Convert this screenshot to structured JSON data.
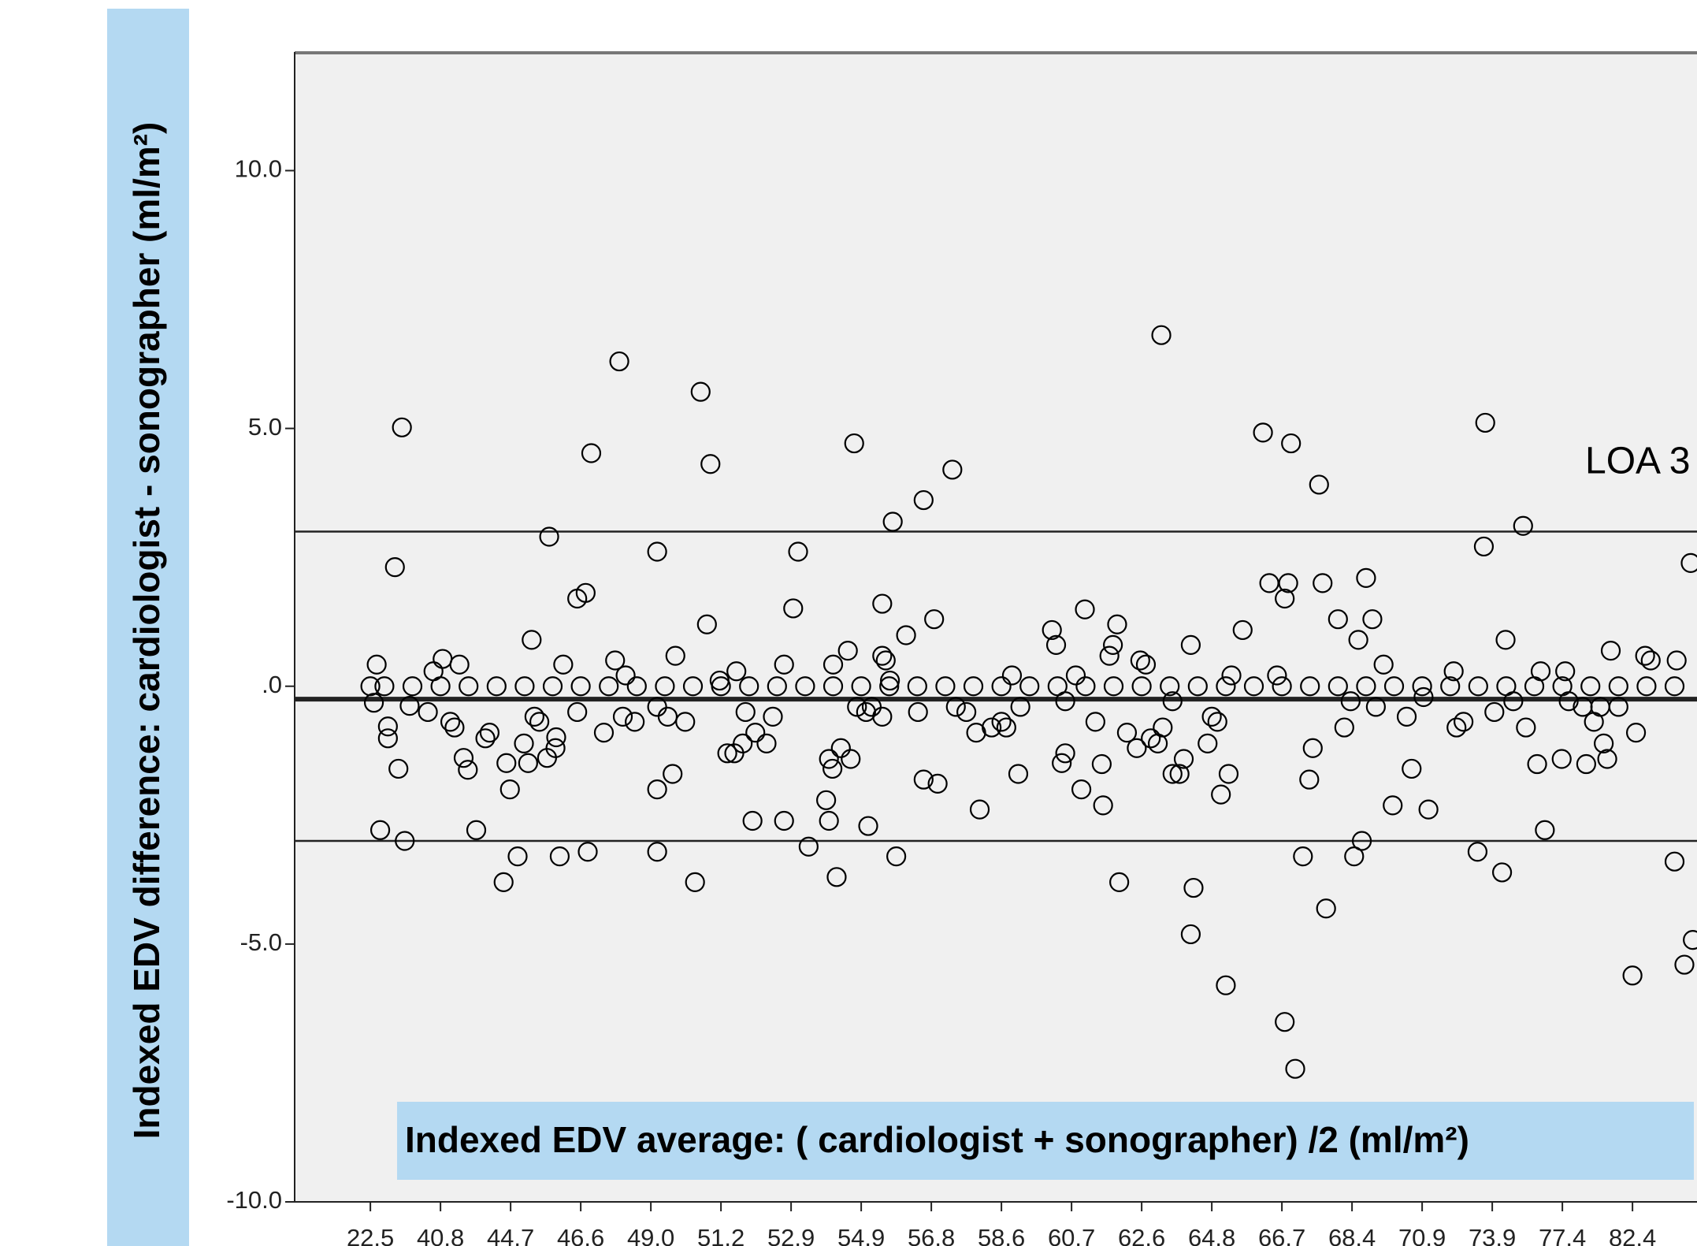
{
  "chart_data": {
    "type": "scatter",
    "y_label": "Indexed EDV difference:  cardiologist  - sonographer (ml/m²)",
    "x_label": "Indexed EDV average: ( cardiologist  + sonographer) /2  (ml/m²)",
    "annotation": "LOA 3",
    "color": "#000000",
    "hlines": [
      3.0,
      -0.25,
      -3.0
    ],
    "xlim": [
      -0.08,
      19.92
    ],
    "ylim": [
      -10,
      12.3
    ],
    "xticks": [
      {
        "value": 1,
        "label": "22.5"
      },
      {
        "value": 2,
        "label": "40.8"
      },
      {
        "value": 3,
        "label": "44.7"
      },
      {
        "value": 4,
        "label": "46.6"
      },
      {
        "value": 5,
        "label": "49.0"
      },
      {
        "value": 6,
        "label": "51.2"
      },
      {
        "value": 7,
        "label": "52.9"
      },
      {
        "value": 8,
        "label": "54.9"
      },
      {
        "value": 9,
        "label": "56.8"
      },
      {
        "value": 10,
        "label": "58.6"
      },
      {
        "value": 11,
        "label": "60.7"
      },
      {
        "value": 12,
        "label": "62.6"
      },
      {
        "value": 13,
        "label": "64.8"
      },
      {
        "value": 14,
        "label": "66.7"
      },
      {
        "value": 15,
        "label": "68.4"
      },
      {
        "value": 16,
        "label": "70.9"
      },
      {
        "value": 17,
        "label": "73.9"
      },
      {
        "value": 18,
        "label": "77.4"
      },
      {
        "value": 19,
        "label": "82.4"
      }
    ],
    "yticks": [
      {
        "value": 10,
        "label": "10.0"
      },
      {
        "value": 5,
        "label": "5.0"
      },
      {
        "value": 0,
        "label": ".0"
      },
      {
        "value": -5,
        "label": "-5.0"
      },
      {
        "value": -10,
        "label": "-10.0"
      }
    ],
    "x": [
      1.0,
      1.09,
      1.05,
      1.25,
      1.25,
      1.35,
      1.4,
      1.14,
      1.45,
      1.49,
      1.56,
      1.82,
      1.9,
      2.03,
      2.14,
      2.2,
      2.27,
      2.33,
      2.39,
      2.51,
      2.64,
      2.7,
      2.9,
      2.94,
      2.99,
      3.1,
      3.19,
      3.25,
      3.3,
      3.34,
      3.41,
      3.55,
      3.52,
      3.64,
      3.65,
      3.7,
      3.75,
      3.95,
      3.95,
      4.07,
      4.1,
      4.15,
      4.33,
      4.49,
      4.55,
      4.6,
      4.64,
      4.77,
      5.09,
      5.09,
      5.09,
      5.09,
      5.24,
      5.31,
      5.35,
      5.49,
      5.63,
      5.71,
      5.8,
      5.85,
      5.98,
      6.09,
      6.19,
      6.22,
      6.31,
      6.35,
      6.45,
      6.49,
      6.65,
      6.74,
      6.9,
      6.9,
      7.03,
      7.1,
      7.25,
      7.5,
      7.54,
      7.54,
      7.59,
      7.6,
      7.65,
      7.71,
      7.81,
      7.85,
      7.9,
      7.94,
      8.07,
      8.1,
      8.15,
      8.3,
      8.3,
      8.35,
      8.3,
      8.41,
      8.45,
      8.5,
      8.64,
      8.81,
      8.89,
      8.89,
      9.04,
      9.09,
      9.3,
      9.35,
      9.5,
      9.64,
      9.69,
      9.86,
      10.0,
      10.07,
      10.15,
      10.24,
      10.27,
      10.72,
      10.78,
      10.86,
      10.91,
      10.91,
      11.06,
      11.14,
      11.19,
      11.34,
      11.43,
      11.45,
      11.54,
      11.59,
      11.65,
      11.68,
      11.79,
      11.93,
      11.98,
      12.06,
      12.13,
      12.23,
      12.28,
      12.3,
      12.44,
      12.44,
      12.54,
      12.6,
      12.7,
      12.7,
      12.74,
      12.94,
      13.0,
      13.08,
      13.13,
      13.2,
      13.24,
      13.28,
      13.44,
      13.73,
      13.82,
      13.93,
      14.04,
      14.04,
      14.09,
      14.13,
      14.19,
      14.3,
      14.39,
      14.44,
      14.53,
      14.58,
      14.63,
      14.8,
      14.89,
      14.98,
      15.03,
      15.09,
      15.14,
      15.2,
      15.29,
      15.34,
      15.45,
      15.58,
      15.78,
      15.85,
      16.02,
      16.09,
      16.45,
      16.49,
      16.59,
      16.79,
      16.88,
      16.9,
      17.03,
      17.14,
      17.19,
      17.3,
      17.44,
      17.48,
      17.64,
      17.69,
      17.75,
      17.99,
      18.04,
      18.09,
      18.34,
      18.29,
      18.45,
      18.54,
      18.59,
      18.64,
      18.69,
      18.8,
      19.0,
      19.05,
      19.18,
      19.26,
      19.6,
      19.63,
      19.74,
      19.83,
      19.86,
      1.2,
      1.6,
      2.0,
      2.4,
      2.8,
      3.2,
      3.6,
      4.0,
      4.4,
      4.8,
      5.2,
      5.6,
      6.0,
      6.4,
      6.8,
      7.2,
      7.6,
      8.0,
      8.4,
      8.8,
      9.2,
      9.6,
      10.0,
      10.4,
      10.8,
      11.2,
      11.6,
      12.0,
      12.4,
      12.8,
      13.2,
      13.6,
      14.0,
      14.4,
      14.8,
      15.2,
      15.6,
      16.0,
      16.4,
      16.8,
      17.2,
      17.6,
      18.0,
      18.4,
      18.8,
      19.2,
      19.6
    ],
    "values": [
      0,
      0.42,
      -0.32,
      -0.78,
      -1.01,
      2.31,
      -1.6,
      -2.79,
      5.02,
      -3.0,
      -0.38,
      -0.5,
      0.29,
      0.53,
      -0.69,
      -0.8,
      0.42,
      -1.39,
      -1.62,
      -2.79,
      -1.01,
      -0.9,
      -3.8,
      -1.49,
      -2.0,
      -3.3,
      -1.11,
      -1.49,
      0.9,
      -0.59,
      -0.69,
      2.9,
      -1.39,
      -1.2,
      -0.99,
      -3.3,
      0.42,
      -0.5,
      1.7,
      1.81,
      -3.21,
      4.52,
      -0.9,
      0.5,
      6.3,
      -0.59,
      0.21,
      -0.69,
      2.61,
      -3.21,
      -2.0,
      -0.4,
      -0.59,
      -1.7,
      0.59,
      -0.69,
      -3.8,
      5.71,
      1.2,
      4.31,
      0.11,
      -1.3,
      -1.3,
      0.29,
      -1.11,
      -0.5,
      -2.61,
      -0.9,
      -1.11,
      -0.59,
      -2.61,
      0.42,
      1.51,
      2.61,
      -3.11,
      -2.21,
      -2.61,
      -1.41,
      -1.6,
      0.42,
      -3.7,
      -1.2,
      0.69,
      -1.41,
      4.71,
      -0.4,
      -0.5,
      -2.71,
      -0.4,
      1.6,
      0.59,
      0.5,
      -0.59,
      0.11,
      3.19,
      -3.3,
      0.99,
      -0.5,
      3.61,
      -1.81,
      1.3,
      -1.89,
      4.2,
      -0.4,
      -0.5,
      -0.9,
      -2.39,
      -0.8,
      -0.69,
      -0.8,
      0.21,
      -1.7,
      -0.4,
      1.09,
      0.8,
      -1.49,
      -1.3,
      -0.29,
      0.21,
      -2.0,
      1.49,
      -0.69,
      -1.51,
      -2.31,
      0.59,
      0.8,
      1.2,
      -3.8,
      -0.9,
      -1.2,
      0.5,
      0.42,
      -1.01,
      -1.11,
      6.81,
      -0.8,
      -0.29,
      -1.7,
      -1.7,
      -1.41,
      0.8,
      -4.81,
      -3.91,
      -1.11,
      -0.59,
      -0.69,
      -2.1,
      -5.8,
      -1.7,
      0.21,
      1.09,
      4.92,
      2.0,
      0.21,
      1.7,
      -6.51,
      2.0,
      4.71,
      -7.42,
      -3.3,
      -1.81,
      -1.2,
      3.91,
      2.0,
      -4.31,
      1.3,
      -0.8,
      -0.29,
      -3.3,
      0.9,
      -3.0,
      2.1,
      1.3,
      -0.4,
      0.42,
      -2.31,
      -0.59,
      -1.6,
      -0.21,
      -2.39,
      0.29,
      -0.8,
      -0.69,
      -3.21,
      2.71,
      5.11,
      -0.5,
      -3.61,
      0.9,
      -0.29,
      3.11,
      -0.8,
      -1.51,
      0.29,
      -2.79,
      -1.41,
      0.29,
      -0.29,
      -1.51,
      -0.4,
      -0.69,
      -0.4,
      -1.11,
      -1.41,
      0.69,
      -0.4,
      -5.61,
      -0.9,
      0.59,
      0.5,
      -3.4,
      0.5,
      -5.4,
      2.39,
      -4.92,
      0,
      0,
      0,
      0,
      0,
      0,
      0,
      0,
      0,
      0,
      0,
      0,
      0,
      0,
      0,
      0,
      0,
      0,
      0,
      0,
      0,
      0,
      0,
      0,
      0,
      0,
      0,
      0,
      0,
      0,
      0,
      0,
      0,
      0,
      0,
      0,
      0,
      0,
      0,
      0,
      0,
      0,
      0,
      0,
      0,
      0,
      0
    ]
  }
}
